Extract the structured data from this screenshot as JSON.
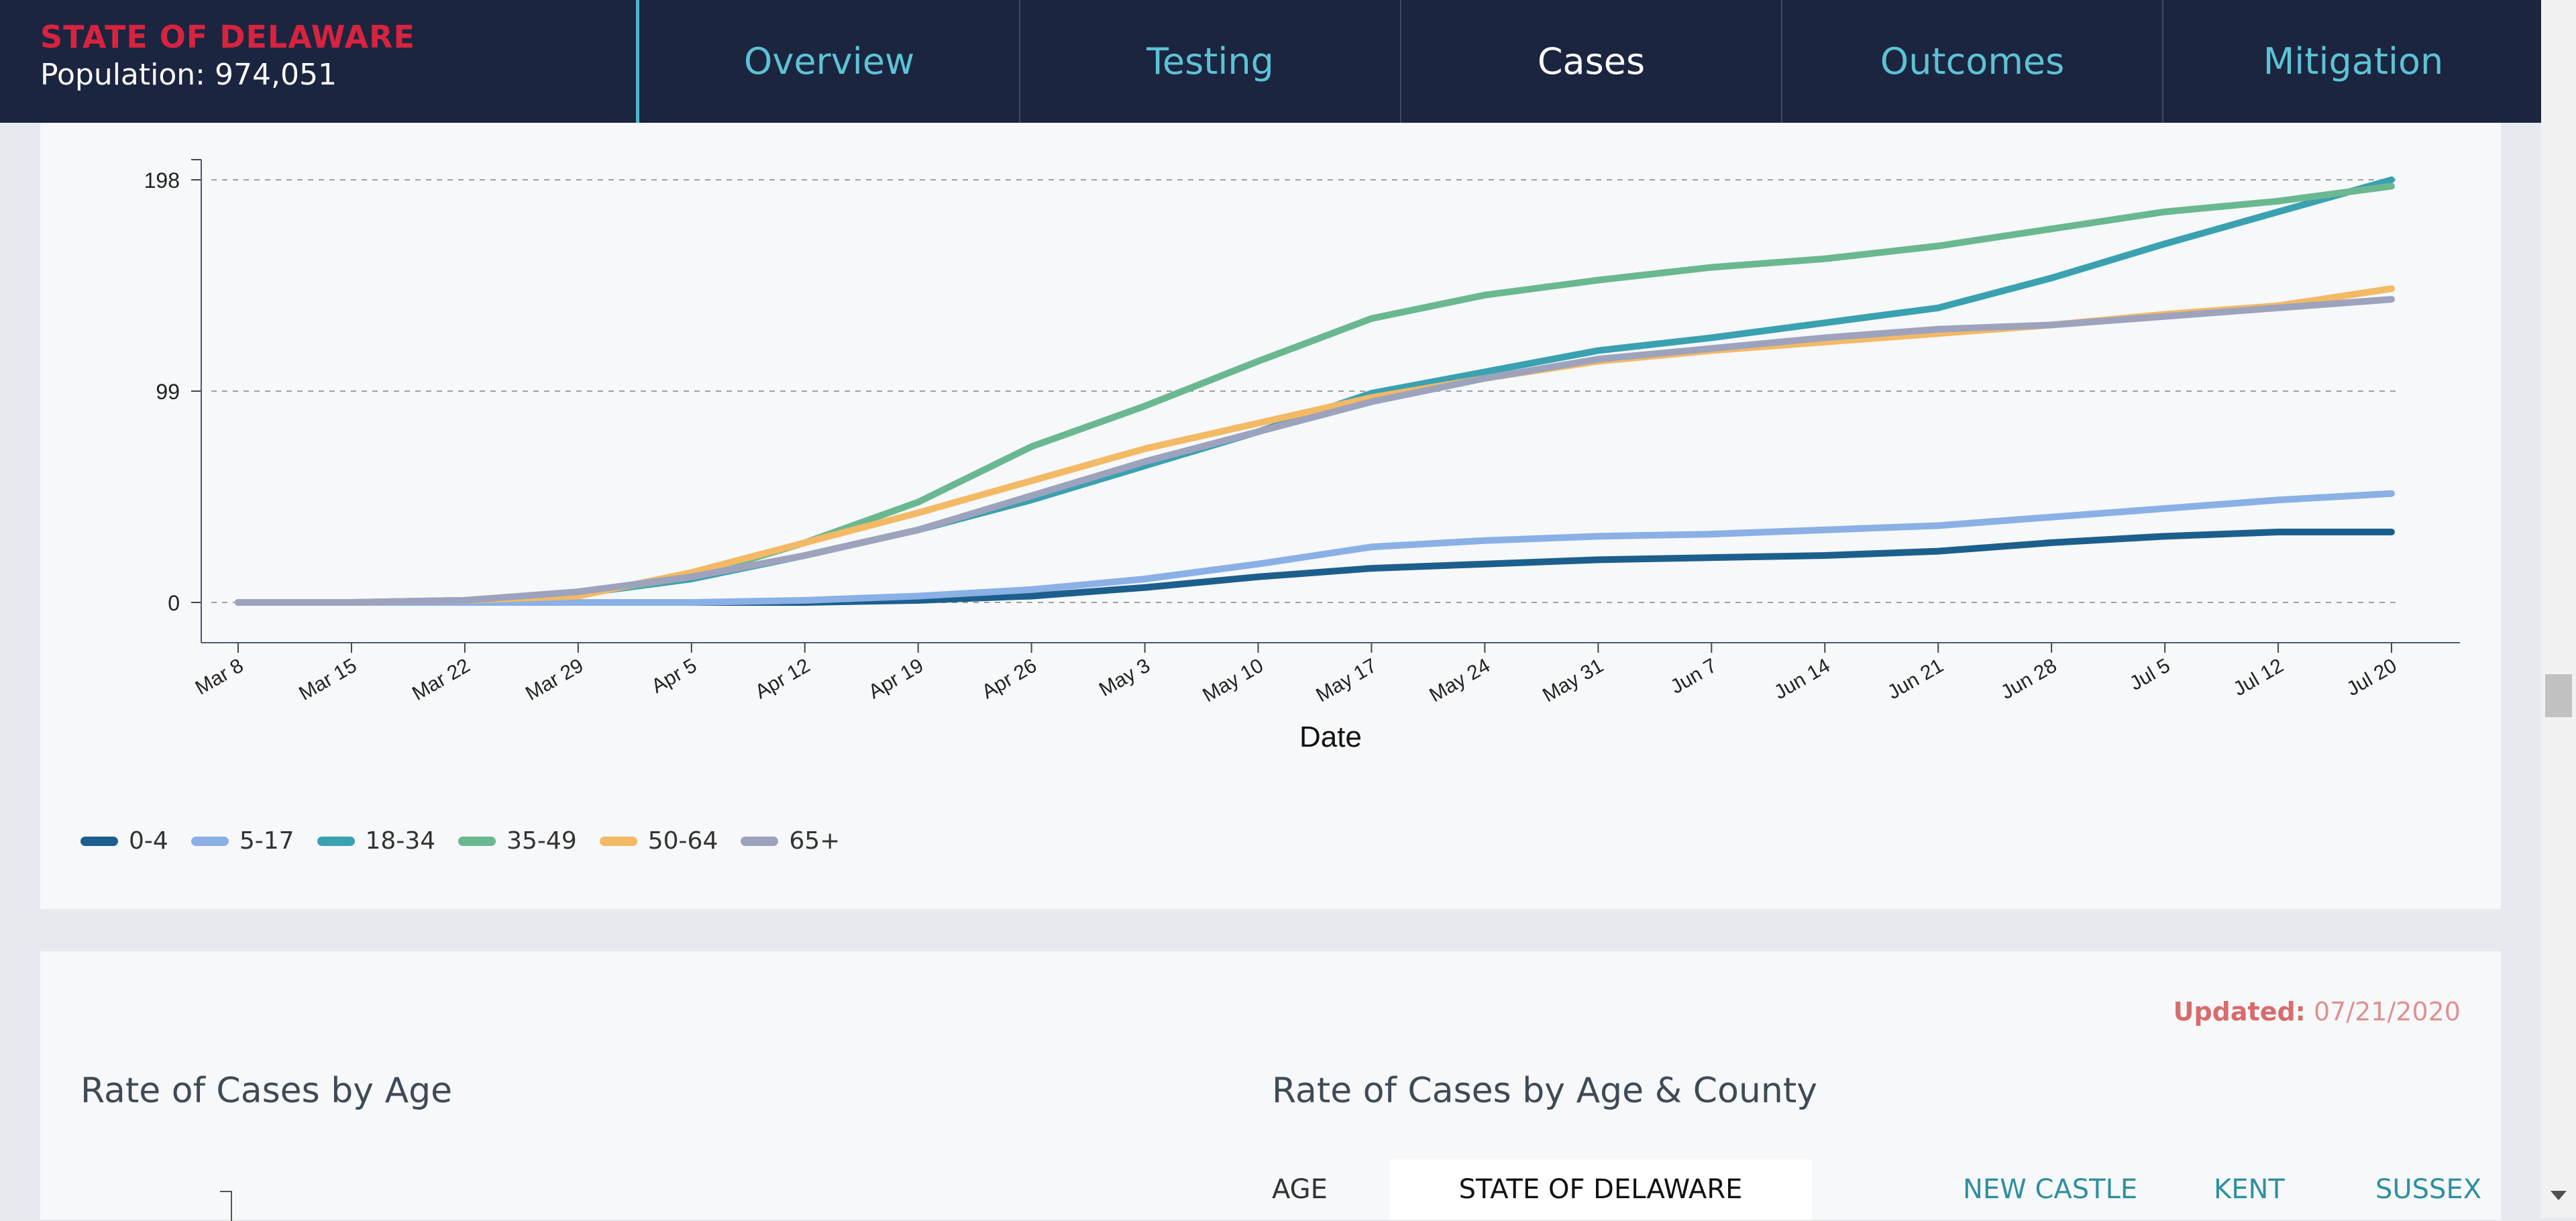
{
  "header": {
    "state_name": "STATE OF DELAWARE",
    "population": "Population: 974,051",
    "tabs": [
      {
        "label": "Overview",
        "active": false
      },
      {
        "label": "Testing",
        "active": false
      },
      {
        "label": "Cases",
        "active": true
      },
      {
        "label": "Outcomes",
        "active": false
      },
      {
        "label": "Mitigation",
        "active": false
      }
    ]
  },
  "colors": {
    "header_bg": "#1b2540",
    "brand_red": "#d8233f",
    "tab_inactive": "#5cc3d4",
    "tab_active": "#ffffff"
  },
  "chart_data": {
    "type": "line",
    "xlabel": "Date",
    "ylabel": "",
    "ylim": [
      0,
      198
    ],
    "yticks": [
      0,
      99,
      198
    ],
    "grid": true,
    "legend_position": "bottom-left",
    "x_ticks": [
      "Mar 8",
      "Mar 15",
      "Mar 22",
      "Mar 29",
      "Apr 5",
      "Apr 12",
      "Apr 19",
      "Apr 26",
      "May 3",
      "May 10",
      "May 17",
      "May 24",
      "May 31",
      "Jun 7",
      "Jun 14",
      "Jun 21",
      "Jun 28",
      "Jul 5",
      "Jul 12",
      "Jul 20"
    ],
    "x": [
      "Mar 8",
      "Mar 15",
      "Mar 22",
      "Mar 29",
      "Apr 5",
      "Apr 12",
      "Apr 19",
      "Apr 26",
      "May 3",
      "May 10",
      "May 17",
      "May 24",
      "May 31",
      "Jun 7",
      "Jun 14",
      "Jun 21",
      "Jun 28",
      "Jul 5",
      "Jul 12",
      "Jul 20"
    ],
    "series": [
      {
        "name": "0-4",
        "color": "#1c5f8d",
        "values": [
          0,
          0,
          0,
          0,
          0,
          0,
          1,
          3,
          7,
          12,
          16,
          18,
          20,
          21,
          22,
          24,
          28,
          31,
          33,
          33
        ]
      },
      {
        "name": "5-17",
        "color": "#8ab0e6",
        "values": [
          0,
          0,
          0,
          0,
          0,
          1,
          3,
          6,
          11,
          18,
          26,
          29,
          31,
          32,
          34,
          36,
          40,
          44,
          48,
          51
        ]
      },
      {
        "name": "18-34",
        "color": "#3aa1b1",
        "values": [
          0,
          0,
          1,
          4,
          11,
          22,
          34,
          48,
          64,
          80,
          98,
          108,
          118,
          124,
          131,
          138,
          152,
          168,
          183,
          198
        ]
      },
      {
        "name": "35-49",
        "color": "#6ab890",
        "values": [
          0,
          0,
          1,
          4,
          12,
          28,
          47,
          73,
          92,
          113,
          133,
          144,
          151,
          157,
          161,
          167,
          175,
          183,
          188,
          195
        ]
      },
      {
        "name": "50-64",
        "color": "#f3b964",
        "values": [
          0,
          0,
          1,
          3,
          14,
          28,
          42,
          57,
          72,
          84,
          96,
          105,
          113,
          118,
          122,
          126,
          130,
          135,
          139,
          147
        ]
      },
      {
        "name": "65+",
        "color": "#9da3bd",
        "values": [
          0,
          0,
          1,
          5,
          12,
          22,
          34,
          50,
          66,
          80,
          94,
          105,
          114,
          119,
          124,
          128,
          130,
          134,
          138,
          142
        ]
      }
    ]
  },
  "section2": {
    "updated_label": "Updated:",
    "updated_value": "07/21/2020",
    "rate_by_age_title": "Rate of Cases by Age",
    "rate_by_county_title": "Rate of Cases by Age & County",
    "table_headers": {
      "age": "AGE",
      "state": "STATE OF DELAWARE",
      "new_castle": "NEW CASTLE",
      "kent": "KENT",
      "sussex": "SUSSEX"
    }
  }
}
